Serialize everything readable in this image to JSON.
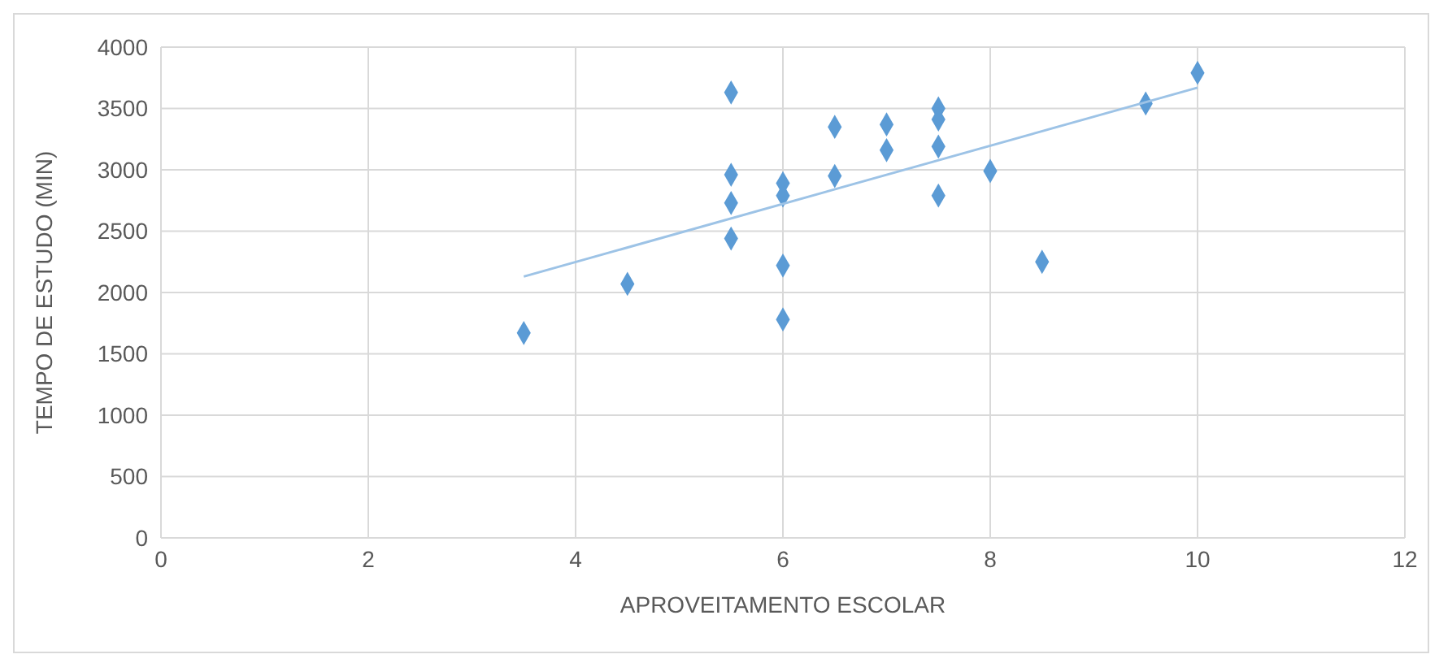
{
  "chart_data": {
    "type": "scatter",
    "xlabel": "APROVEITAMENTO ESCOLAR",
    "ylabel": "TEMPO DE ESTUDO (MIN)",
    "series": [
      {
        "color": "#5b9bd5",
        "x": [
          3.5,
          4.5,
          5.5,
          5.5,
          5.5,
          5.5,
          6,
          6,
          6,
          6,
          6.5,
          6.5,
          7,
          7,
          7.5,
          7.5,
          7.5,
          7.5,
          8,
          8.5,
          9.5,
          10
        ],
        "values": [
          1670,
          2070,
          3630,
          2960,
          2730,
          2440,
          2890,
          2790,
          2220,
          1780,
          3350,
          2950,
          3370,
          3160,
          3500,
          3410,
          3190,
          2790,
          2990,
          2250,
          3540,
          3790
        ]
      },
      {
        "type": "line",
        "color": "#9dc3e6",
        "marker": "none",
        "x": [
          3.5,
          10
        ],
        "values": [
          2130,
          3670
        ]
      }
    ],
    "xlim": [
      0,
      12
    ],
    "xticks": [
      0,
      2,
      4,
      6,
      8,
      10,
      12
    ],
    "ylim": [
      0,
      4000
    ],
    "yticks": [
      0,
      500,
      1000,
      1500,
      2000,
      2500,
      3000,
      3500,
      4000
    ],
    "grid": true,
    "marker": "diamond"
  }
}
